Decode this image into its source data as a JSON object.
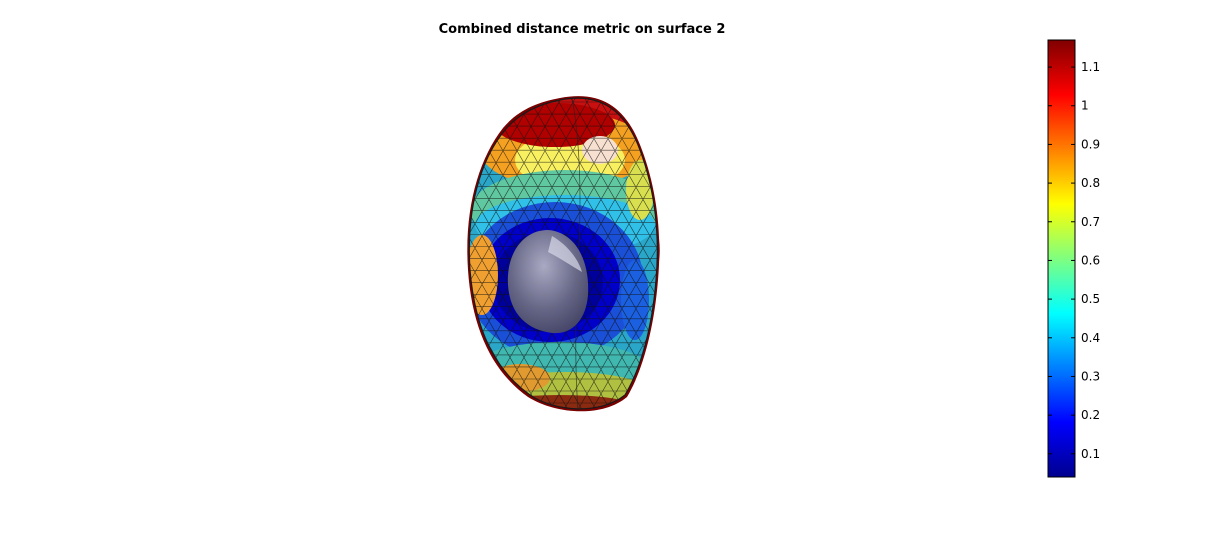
{
  "chart_data": {
    "type": "heatmap",
    "title": "Combined distance metric on surface 2",
    "colormap": "jet",
    "colorbar": {
      "range": [
        0.04,
        1.17
      ],
      "ticks": [
        0.1,
        0.2,
        0.3,
        0.4,
        0.5,
        0.6,
        0.7,
        0.8,
        0.9,
        1,
        1.1
      ],
      "tick_labels": [
        "0.1",
        "0.2",
        "0.3",
        "0.4",
        "0.5",
        "0.6",
        "0.7",
        "0.8",
        "0.9",
        "1",
        "1.1"
      ],
      "placement": "right"
    },
    "surface": {
      "description_colors": {
        "low": "#00008f",
        "high": "#800000"
      },
      "inner_mesh_color": "#8a8a9a"
    }
  }
}
